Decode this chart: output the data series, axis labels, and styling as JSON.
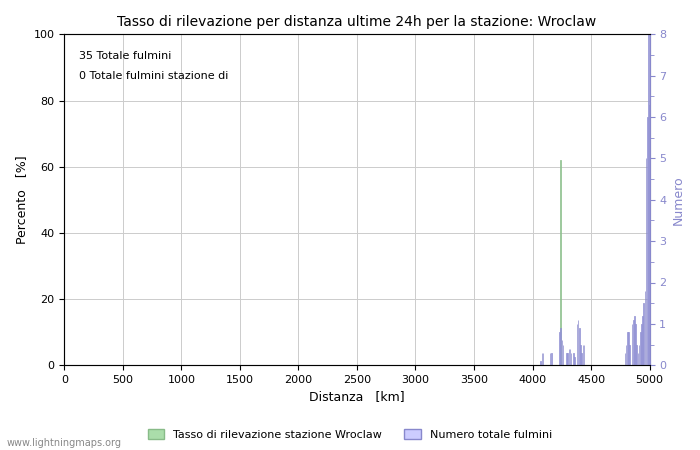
{
  "title": "Tasso di rilevazione per distanza ultime 24h per la stazione: Wroclaw",
  "annotation_line1": "35 Totale fulmini",
  "annotation_line2": "0 Totale fulmini stazione di",
  "xlabel": "Distanza   [km]",
  "ylabel_left": "Percento   [%]",
  "ylabel_right": "Numero",
  "xlim": [
    0,
    5000
  ],
  "ylim_left": [
    0,
    100
  ],
  "ylim_right": [
    0.0,
    8.0
  ],
  "yticks_left": [
    0,
    20,
    40,
    60,
    80,
    100
  ],
  "yticks_right": [
    0.0,
    1.0,
    2.0,
    3.0,
    4.0,
    5.0,
    6.0,
    7.0,
    8.0
  ],
  "xticks": [
    0,
    500,
    1000,
    1500,
    2000,
    2500,
    3000,
    3500,
    4000,
    4500,
    5000
  ],
  "watermark": "www.lightningmaps.org",
  "legend_label_left": "Tasso di rilevazione stazione Wroclaw",
  "legend_label_right": "Numero totale fulmini",
  "bar_color_left": "#aaddaa",
  "bar_color_right": "#ccccff",
  "edge_color_right": "#8888cc",
  "edge_color_left": "#88bb88",
  "bg_color": "#ffffff",
  "grid_color": "#cccccc",
  "num_data": [
    [
      4070,
      0.1
    ],
    [
      4080,
      0.3
    ],
    [
      4090,
      0.3
    ],
    [
      4150,
      0.3
    ],
    [
      4160,
      0.3
    ],
    [
      4230,
      0.8
    ],
    [
      4240,
      0.9
    ],
    [
      4250,
      0.6
    ],
    [
      4260,
      0.5
    ],
    [
      4290,
      0.3
    ],
    [
      4300,
      0.3
    ],
    [
      4310,
      0.4
    ],
    [
      4320,
      0.4
    ],
    [
      4330,
      0.3
    ],
    [
      4350,
      0.3
    ],
    [
      4360,
      0.2
    ],
    [
      4380,
      1.0
    ],
    [
      4390,
      1.1
    ],
    [
      4400,
      0.9
    ],
    [
      4410,
      0.5
    ],
    [
      4420,
      0.3
    ],
    [
      4430,
      0.5
    ],
    [
      4440,
      0.5
    ],
    [
      4790,
      0.3
    ],
    [
      4800,
      0.5
    ],
    [
      4810,
      0.8
    ],
    [
      4820,
      0.8
    ],
    [
      4830,
      0.5
    ],
    [
      4850,
      1.0
    ],
    [
      4860,
      1.1
    ],
    [
      4870,
      1.2
    ],
    [
      4880,
      1.0
    ],
    [
      4890,
      0.5
    ],
    [
      4900,
      0.3
    ],
    [
      4910,
      0.5
    ],
    [
      4920,
      0.8
    ],
    [
      4930,
      1.0
    ],
    [
      4940,
      1.2
    ],
    [
      4950,
      1.5
    ],
    [
      4960,
      1.8
    ],
    [
      4970,
      5.0
    ],
    [
      4980,
      6.0
    ],
    [
      4990,
      8.0
    ],
    [
      5000,
      6.3
    ]
  ],
  "pct_data": [
    [
      4240,
      62.0
    ]
  ]
}
